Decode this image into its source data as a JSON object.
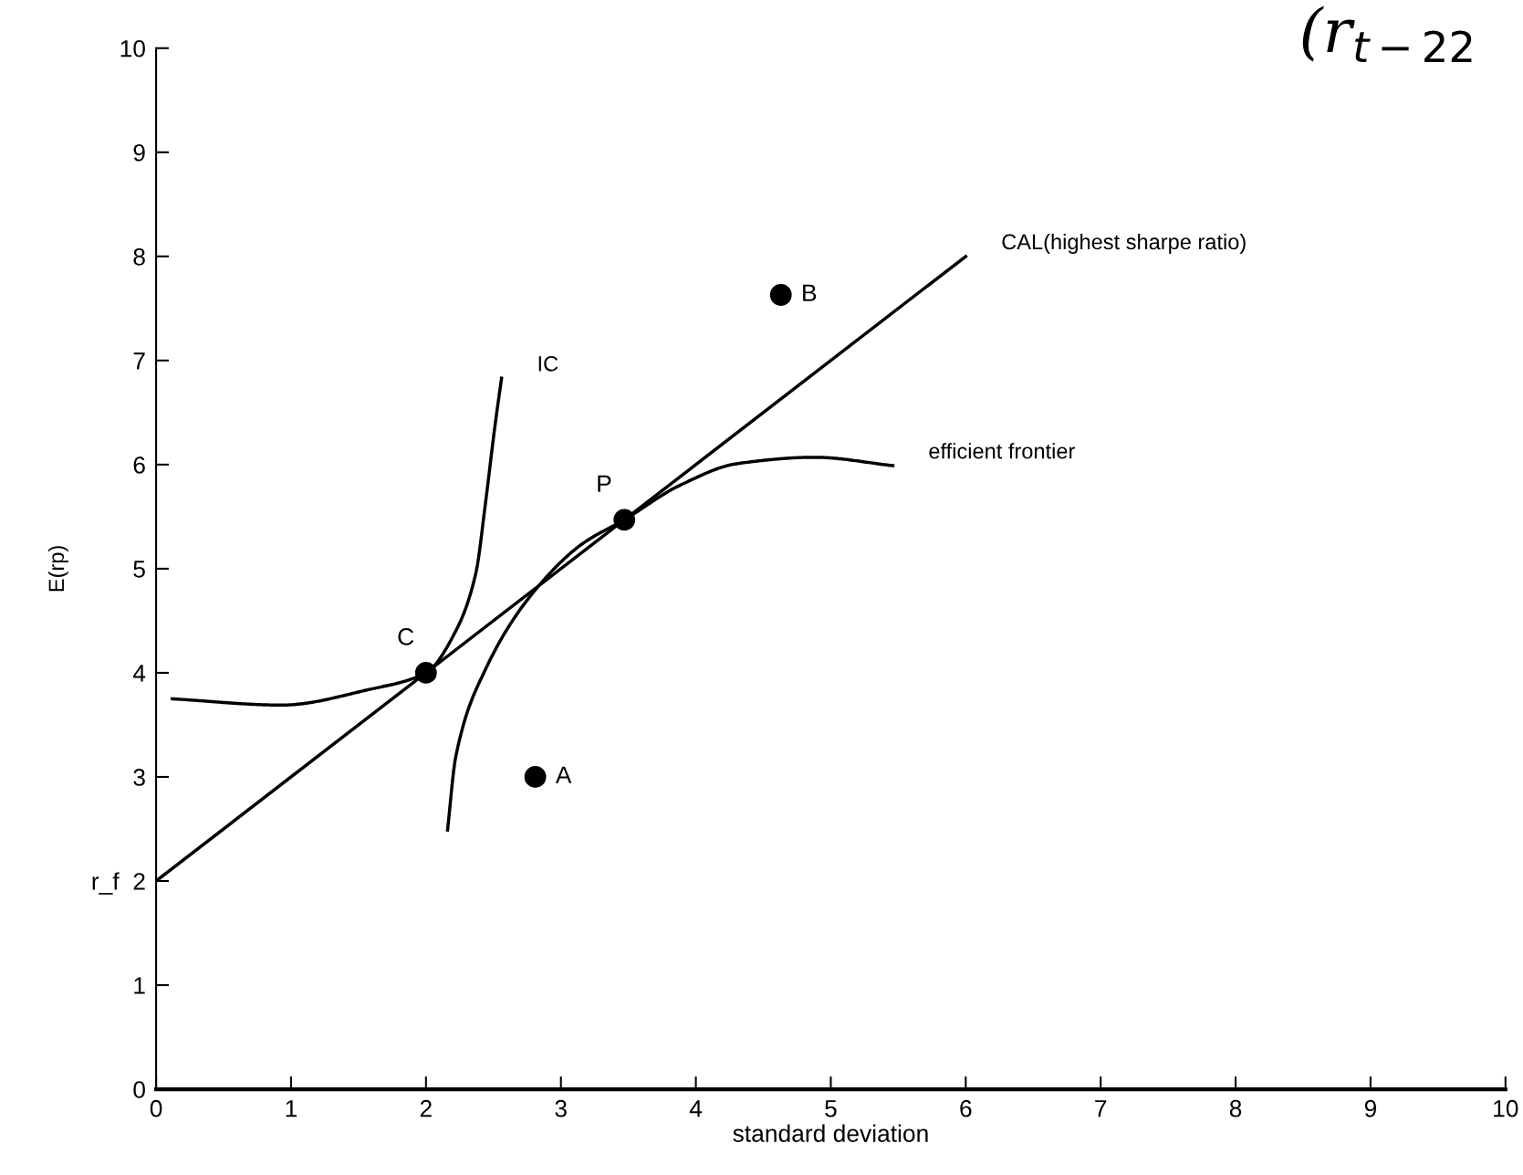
{
  "chart_data": {
    "type": "line",
    "xlabel": "standard deviation",
    "ylabel": "E(rp)",
    "xlim": [
      0,
      10
    ],
    "ylim": [
      0,
      10
    ],
    "xticks": [
      0,
      1,
      2,
      3,
      4,
      5,
      6,
      7,
      8,
      9,
      10
    ],
    "yticks": [
      0,
      1,
      {
        "value": 2,
        "label": "r_f  2"
      },
      3,
      4,
      5,
      6,
      7,
      8,
      9,
      10
    ],
    "grid": false,
    "legend": false,
    "line_style": "solid",
    "series": [
      {
        "name": "CAL(highest sharpe ratio)",
        "color": "#000000",
        "x": [
          0,
          6
        ],
        "values": [
          2,
          8
        ]
      },
      {
        "name": "IC",
        "color": "#000000",
        "x": [
          0.12,
          0.93,
          1.58,
          2.0,
          2.22,
          2.37,
          2.44,
          2.51,
          2.56
        ],
        "values": [
          3.75,
          3.69,
          3.84,
          4.0,
          4.4,
          4.96,
          5.62,
          6.36,
          6.83
        ]
      },
      {
        "name": "efficient frontier",
        "color": "#000000",
        "x": [
          2.16,
          2.22,
          2.44,
          2.8,
          3.16,
          3.47,
          3.88,
          4.31,
          4.88,
          5.46
        ],
        "values": [
          2.49,
          3.19,
          4.03,
          4.78,
          5.24,
          5.47,
          5.8,
          6.01,
          6.07,
          5.99
        ]
      },
      {
        "type": "scatter",
        "marker": "circle",
        "color": "#000000",
        "x": [
          2.81,
          4.63,
          2.0,
          3.47
        ],
        "values": [
          3.0,
          7.63,
          4.0,
          5.47
        ]
      }
    ],
    "annotations": [
      {
        "text": "A",
        "x": 2.81,
        "y": 3.0
      },
      {
        "text": "B",
        "x": 4.63,
        "y": 7.63
      },
      {
        "text": "C",
        "x": 2.0,
        "y": 4.0
      },
      {
        "text": "P",
        "x": 3.47,
        "y": 5.47
      },
      "(r$_{t−22}$"
    ]
  }
}
